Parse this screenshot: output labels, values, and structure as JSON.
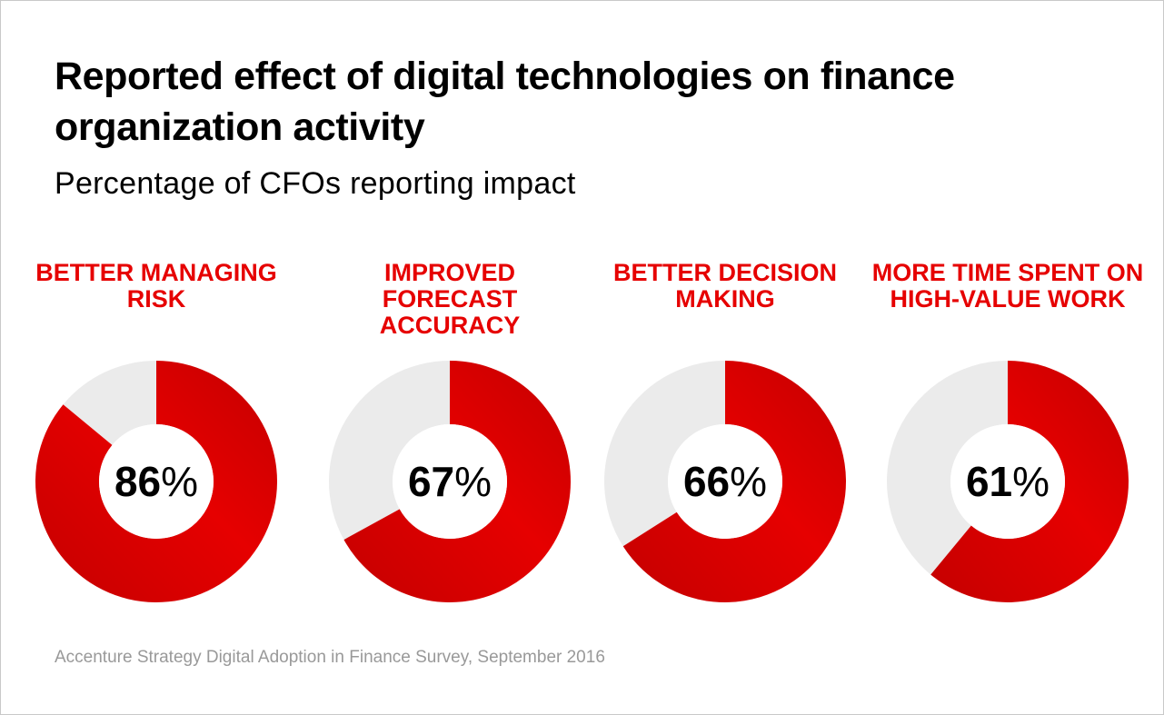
{
  "header": {
    "title": "Reported effect of digital technologies on finance organization activity",
    "subtitle": "Percentage of CFOs reporting impact"
  },
  "chart_data": {
    "type": "pie",
    "title": "Reported effect of digital technologies on finance organization activity",
    "subtitle": "Percentage of CFOs reporting impact",
    "categories": [
      "BETTER MANAGING RISK",
      "IMPROVED FORECAST ACCURACY",
      "BETTER DECISION MAKING",
      "MORE TIME SPENT ON HIGH-VALUE WORK"
    ],
    "values": [
      86,
      67,
      66,
      61
    ],
    "value_labels": [
      "86%",
      "67%",
      "66%",
      "61%"
    ],
    "unit": "%",
    "colors": {
      "filled": "#e60000",
      "filled_dark": "#c40000",
      "remainder": "#ebebeb"
    }
  },
  "footer": {
    "source": "Accenture Strategy Digital Adoption in Finance Survey, September 2016"
  }
}
